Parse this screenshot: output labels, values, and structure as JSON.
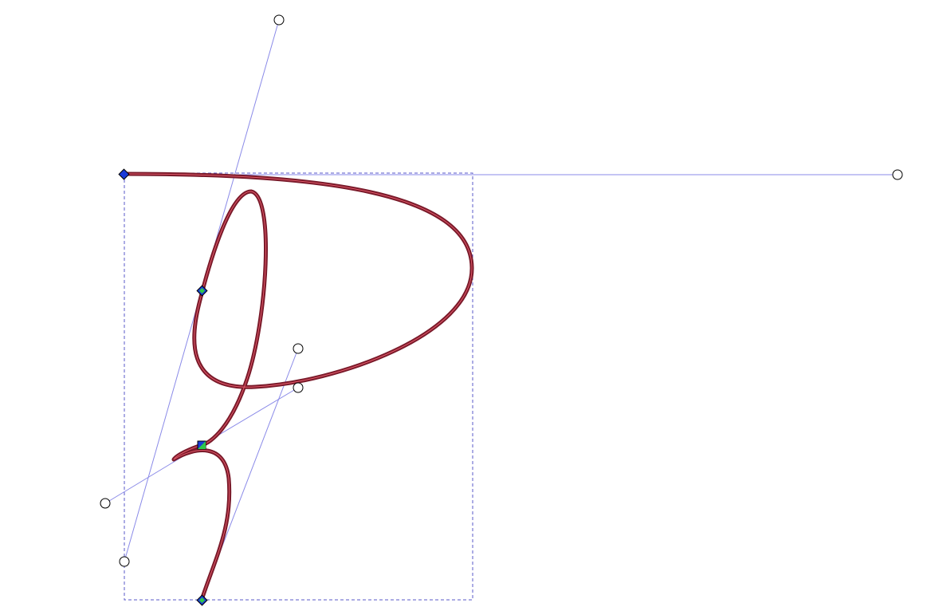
{
  "canvas": {
    "background": "#ffffff",
    "path_stroke_color": "#7a1a2a",
    "path_inner_color": "#e05a6a",
    "handle_line_color": "#8a8ae8",
    "bbox_color": "#5a5ac8",
    "node_fill_color": "#1a3ad8",
    "selected_node_fill_color": "#2ec84a"
  },
  "tool": {
    "mode": "node-edit"
  },
  "icons": {
    "node": "diamond-node-icon",
    "selected_node": "square-node-icon",
    "control_handle": "circle-handle-icon"
  }
}
